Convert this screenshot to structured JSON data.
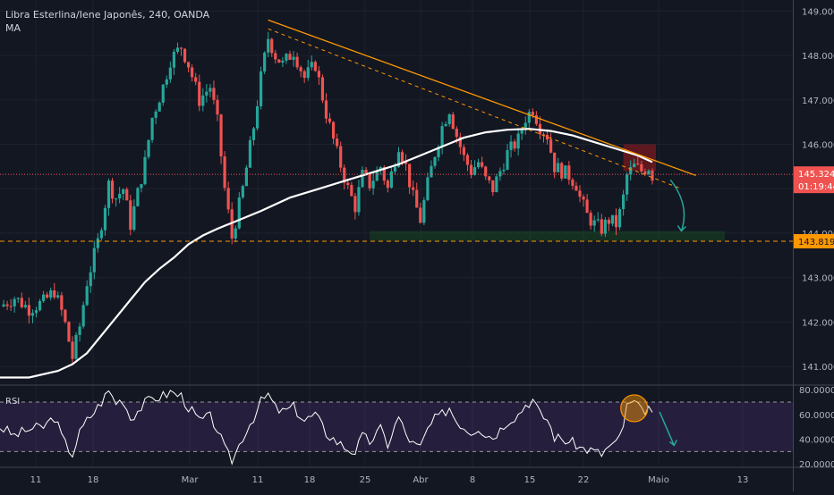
{
  "legend": {
    "title": "Libra Esterlina/Iene Japonês, 240, OANDA",
    "indicator": "MA"
  },
  "chart_data": [
    {
      "type": "candlestick",
      "title": "Libra Esterlina/Iene Japonês, 240, OANDA",
      "indicator": "MA",
      "xticks": [
        "11",
        "18",
        "Mar",
        "11",
        "18",
        "25",
        "Abr",
        "8",
        "15",
        "22",
        "Maio",
        "13"
      ],
      "yticks": [
        "141.000",
        "142.000",
        "143.000",
        "144.000",
        "145.000",
        "146.000",
        "147.000",
        "148.000",
        "149.000"
      ],
      "ylim": [
        140.6,
        149.25
      ],
      "last_price": 145.324,
      "last_price_label": "145.324",
      "countdown": "01:19:44",
      "support_level": 143.819,
      "support_label": "143.819",
      "colors": {
        "up": "#26a69a",
        "down": "#ef5350",
        "ma": "#ffffff",
        "trendline": "#ff9800",
        "support": "#ff9800",
        "price_line": "#ef5350"
      },
      "close_path": [
        [
          0.0,
          142.35
        ],
        [
          2.0,
          142.55
        ],
        [
          4.0,
          142.3
        ],
        [
          6.0,
          142.45
        ],
        [
          7.5,
          142.7
        ],
        [
          8.8,
          142.1
        ],
        [
          10.0,
          141.2
        ],
        [
          11.0,
          141.9
        ],
        [
          12.0,
          142.9
        ],
        [
          13.5,
          143.8
        ],
        [
          15.0,
          145.1
        ],
        [
          16.0,
          144.8
        ],
        [
          17.0,
          145.0
        ],
        [
          18.0,
          144.2
        ],
        [
          19.0,
          144.9
        ],
        [
          20.0,
          145.6
        ],
        [
          21.0,
          146.6
        ],
        [
          22.5,
          147.3
        ],
        [
          23.5,
          147.9
        ],
        [
          25.0,
          148.2
        ],
        [
          26.0,
          147.8
        ],
        [
          27.5,
          147.0
        ],
        [
          29.0,
          147.3
        ],
        [
          30.0,
          146.5
        ],
        [
          31.0,
          145.0
        ],
        [
          32.0,
          143.9
        ],
        [
          33.5,
          145.0
        ],
        [
          35.0,
          146.4
        ],
        [
          36.0,
          147.5
        ],
        [
          37.0,
          148.4
        ],
        [
          38.0,
          148.0
        ],
        [
          39.0,
          147.8
        ],
        [
          40.5,
          148.1
        ],
        [
          42.0,
          147.5
        ],
        [
          43.5,
          147.8
        ],
        [
          45.0,
          146.7
        ],
        [
          46.5,
          145.8
        ],
        [
          48.0,
          145.0
        ],
        [
          49.0,
          144.6
        ],
        [
          50.0,
          145.3
        ],
        [
          51.0,
          145.1
        ],
        [
          52.5,
          145.5
        ],
        [
          53.5,
          145.0
        ],
        [
          55.0,
          146.0
        ],
        [
          56.0,
          145.5
        ],
        [
          57.0,
          144.8
        ],
        [
          58.0,
          144.3
        ],
        [
          59.0,
          145.1
        ],
        [
          60.0,
          145.8
        ],
        [
          61.0,
          146.4
        ],
        [
          62.0,
          146.8
        ],
        [
          62.8,
          146.3
        ],
        [
          64.0,
          145.7
        ],
        [
          65.0,
          145.4
        ],
        [
          66.0,
          145.6
        ],
        [
          67.0,
          145.2
        ],
        [
          68.0,
          145.0
        ],
        [
          69.0,
          145.4
        ],
        [
          70.0,
          145.8
        ],
        [
          71.5,
          146.1
        ],
        [
          72.5,
          146.6
        ],
        [
          73.5,
          146.8
        ],
        [
          74.5,
          146.4
        ],
        [
          75.5,
          146.2
        ],
        [
          76.5,
          145.5
        ],
        [
          77.5,
          145.4
        ],
        [
          78.5,
          145.3
        ],
        [
          79.5,
          145.1
        ],
        [
          80.0,
          144.8
        ],
        [
          81.0,
          144.4
        ],
        [
          82.0,
          144.2
        ],
        [
          83.0,
          144.1
        ],
        [
          84.0,
          144.3
        ],
        [
          85.0,
          144.2
        ],
        [
          85.8,
          144.6
        ],
        [
          86.5,
          145.3
        ],
        [
          87.5,
          145.5
        ],
        [
          88.5,
          145.4
        ],
        [
          89.5,
          145.5
        ],
        [
          90.0,
          145.3
        ]
      ],
      "ma_path": [
        [
          0.0,
          140.75
        ],
        [
          4.0,
          140.75
        ],
        [
          8.0,
          140.9
        ],
        [
          10.0,
          141.05
        ],
        [
          12.0,
          141.3
        ],
        [
          14.0,
          141.7
        ],
        [
          16.0,
          142.1
        ],
        [
          18.0,
          142.5
        ],
        [
          20.0,
          142.9
        ],
        [
          22.0,
          143.2
        ],
        [
          24.0,
          143.45
        ],
        [
          26.0,
          143.75
        ],
        [
          28.0,
          143.95
        ],
        [
          30.0,
          144.1
        ],
        [
          33.0,
          144.3
        ],
        [
          36.0,
          144.5
        ],
        [
          40.0,
          144.8
        ],
        [
          44.0,
          145.0
        ],
        [
          48.0,
          145.2
        ],
        [
          52.0,
          145.4
        ],
        [
          55.0,
          145.55
        ],
        [
          58.0,
          145.75
        ],
        [
          61.0,
          145.95
        ],
        [
          64.0,
          146.15
        ],
        [
          67.0,
          146.27
        ],
        [
          70.0,
          146.33
        ],
        [
          73.0,
          146.35
        ],
        [
          76.0,
          146.3
        ],
        [
          79.0,
          146.2
        ],
        [
          82.0,
          146.05
        ],
        [
          85.0,
          145.9
        ],
        [
          88.0,
          145.75
        ],
        [
          90.0,
          145.6
        ]
      ],
      "trendline": [
        [
          37.0,
          148.8
        ],
        [
          96.0,
          145.3
        ]
      ],
      "trendline_dashed": [
        [
          37.0,
          148.6
        ],
        [
          94.0,
          145.0
        ]
      ],
      "xrange": [
        0,
        106
      ],
      "annotations": [
        {
          "kind": "resistance-zone",
          "x": [
            86.0,
            90.5
          ],
          "y": [
            145.4,
            146.0
          ],
          "color": "#b71c1c"
        },
        {
          "kind": "support-zone",
          "x": [
            51.0,
            100.0
          ],
          "y": [
            143.83,
            144.05
          ],
          "color": "#1b5e20"
        },
        {
          "kind": "down-arrow",
          "from": [
            92.5,
            145.2
          ],
          "to": [
            94.0,
            144.05
          ],
          "color": "#26a69a"
        }
      ]
    },
    {
      "type": "line",
      "indicator": "RSI",
      "yticks": [
        "20.0000",
        "40.0000",
        "60.0000",
        "80.0000"
      ],
      "ylim": [
        18,
        83
      ],
      "band": [
        30,
        70
      ],
      "colors": {
        "line": "#ffffff",
        "band": "#6a3fa0",
        "circle": "#ff9800",
        "arrow": "#26a69a"
      },
      "path": [
        [
          0.0,
          50
        ],
        [
          2.0,
          43
        ],
        [
          4.0,
          48
        ],
        [
          6.0,
          50
        ],
        [
          7.5,
          58
        ],
        [
          8.8,
          38
        ],
        [
          10.0,
          28
        ],
        [
          11.0,
          45
        ],
        [
          12.0,
          55
        ],
        [
          13.5,
          66
        ],
        [
          15.0,
          79
        ],
        [
          16.0,
          70
        ],
        [
          17.0,
          72
        ],
        [
          18.0,
          57
        ],
        [
          19.0,
          63
        ],
        [
          20.0,
          69
        ],
        [
          21.0,
          73
        ],
        [
          22.5,
          75
        ],
        [
          23.5,
          78
        ],
        [
          25.0,
          75
        ],
        [
          26.0,
          66
        ],
        [
          27.5,
          55
        ],
        [
          29.0,
          58
        ],
        [
          30.0,
          48
        ],
        [
          31.0,
          32
        ],
        [
          32.0,
          22
        ],
        [
          33.5,
          42
        ],
        [
          35.0,
          58
        ],
        [
          36.0,
          70
        ],
        [
          37.0,
          76
        ],
        [
          38.0,
          65
        ],
        [
          39.0,
          62
        ],
        [
          40.5,
          66
        ],
        [
          42.0,
          55
        ],
        [
          43.5,
          60
        ],
        [
          45.0,
          45
        ],
        [
          46.5,
          38
        ],
        [
          48.0,
          32
        ],
        [
          49.0,
          30
        ],
        [
          50.0,
          42
        ],
        [
          51.0,
          38
        ],
        [
          52.5,
          48
        ],
        [
          53.5,
          36
        ],
        [
          55.0,
          58
        ],
        [
          56.0,
          44
        ],
        [
          57.0,
          36
        ],
        [
          58.0,
          33
        ],
        [
          59.0,
          48
        ],
        [
          60.0,
          56
        ],
        [
          61.0,
          60
        ],
        [
          62.0,
          66
        ],
        [
          62.8,
          56
        ],
        [
          64.0,
          50
        ],
        [
          65.0,
          46
        ],
        [
          66.0,
          50
        ],
        [
          67.0,
          44
        ],
        [
          68.0,
          42
        ],
        [
          69.0,
          48
        ],
        [
          70.0,
          55
        ],
        [
          71.5,
          60
        ],
        [
          72.5,
          68
        ],
        [
          73.5,
          72
        ],
        [
          74.5,
          60
        ],
        [
          75.5,
          56
        ],
        [
          76.5,
          42
        ],
        [
          77.5,
          40
        ],
        [
          78.5,
          38
        ],
        [
          79.5,
          36
        ],
        [
          80.0,
          33
        ],
        [
          81.0,
          32
        ],
        [
          82.0,
          30
        ],
        [
          83.0,
          28
        ],
        [
          84.0,
          34
        ],
        [
          85.0,
          36
        ],
        [
          85.8,
          46
        ],
        [
          86.5,
          66
        ],
        [
          87.5,
          70
        ],
        [
          88.5,
          62
        ],
        [
          89.5,
          66
        ],
        [
          90.0,
          58
        ]
      ],
      "annotations": [
        {
          "kind": "circle",
          "at": [
            87.5,
            65
          ]
        },
        {
          "kind": "down-arrow",
          "from": [
            91.0,
            62
          ],
          "to": [
            93.0,
            35
          ]
        }
      ]
    }
  ]
}
